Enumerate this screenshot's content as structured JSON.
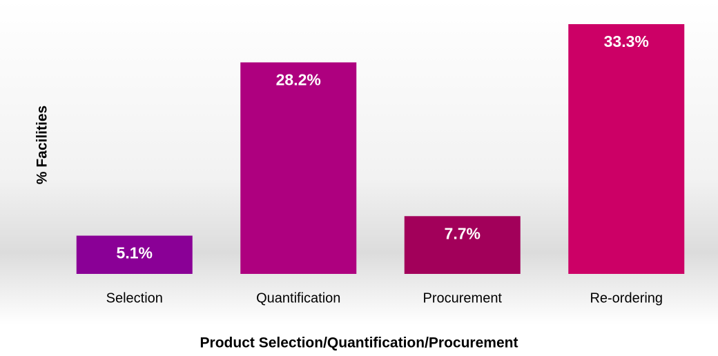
{
  "chart_data": {
    "type": "bar",
    "x_label": "Product Selection/Quantification/Procurement",
    "y_label": "% Facilities",
    "categories": [
      "Selection",
      "Quantification",
      "Procurement",
      "Re-ordering"
    ],
    "values": [
      5.1,
      28.2,
      7.7,
      33.3
    ],
    "value_labels": [
      "5.1%",
      "28.2%",
      "7.7%",
      "33.3%"
    ],
    "colors": [
      "#8a0096",
      "#ae007f",
      "#a2005a",
      "#cc0066"
    ],
    "ylim": [
      0,
      35
    ]
  }
}
